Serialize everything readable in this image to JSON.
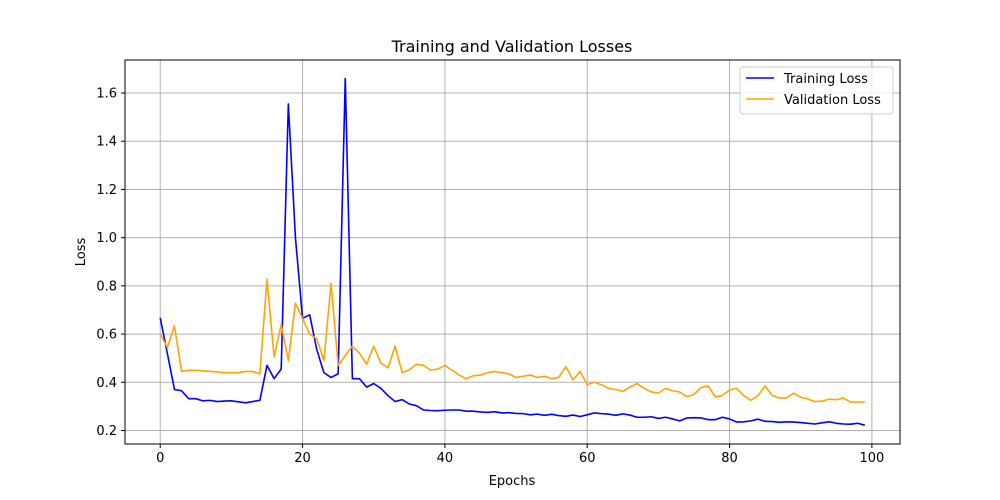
{
  "chart_data": {
    "type": "line",
    "title": "Training and Validation Losses",
    "xlabel": "Epochs",
    "ylabel": "Loss",
    "xlim": [
      -4.95,
      103.95
    ],
    "ylim": [
      0.144,
      1.737
    ],
    "xticks": [
      0,
      20,
      40,
      60,
      80,
      100
    ],
    "yticks": [
      0.2,
      0.4,
      0.6,
      0.8,
      1.0,
      1.2,
      1.4,
      1.6
    ],
    "xtick_labels": [
      "0",
      "20",
      "40",
      "60",
      "80",
      "100"
    ],
    "ytick_labels": [
      "0.2",
      "0.4",
      "0.6",
      "0.8",
      "1.0",
      "1.2",
      "1.4",
      "1.6"
    ],
    "grid": true,
    "legend_position": "top-right",
    "x": [
      0,
      1,
      2,
      3,
      4,
      5,
      6,
      7,
      8,
      9,
      10,
      11,
      12,
      13,
      14,
      15,
      16,
      17,
      18,
      19,
      20,
      21,
      22,
      23,
      24,
      25,
      26,
      27,
      28,
      29,
      30,
      31,
      32,
      33,
      34,
      35,
      36,
      37,
      38,
      39,
      40,
      41,
      42,
      43,
      44,
      45,
      46,
      47,
      48,
      49,
      50,
      51,
      52,
      53,
      54,
      55,
      56,
      57,
      58,
      59,
      60,
      61,
      62,
      63,
      64,
      65,
      66,
      67,
      68,
      69,
      70,
      71,
      72,
      73,
      74,
      75,
      76,
      77,
      78,
      79,
      80,
      81,
      82,
      83,
      84,
      85,
      86,
      87,
      88,
      89,
      90,
      91,
      92,
      93,
      94,
      95,
      96,
      97,
      98,
      99
    ],
    "series": [
      {
        "name": "Training Loss",
        "color": "#0000ff",
        "values": [
          0.667,
          0.52,
          0.37,
          0.365,
          0.332,
          0.332,
          0.323,
          0.325,
          0.32,
          0.322,
          0.323,
          0.319,
          0.315,
          0.32,
          0.325,
          0.47,
          0.415,
          0.455,
          1.555,
          1.0,
          0.665,
          0.68,
          0.535,
          0.44,
          0.42,
          0.435,
          1.66,
          0.415,
          0.415,
          0.38,
          0.395,
          0.375,
          0.345,
          0.32,
          0.328,
          0.31,
          0.303,
          0.285,
          0.283,
          0.282,
          0.284,
          0.285,
          0.285,
          0.28,
          0.28,
          0.277,
          0.275,
          0.278,
          0.273,
          0.274,
          0.271,
          0.27,
          0.265,
          0.268,
          0.263,
          0.267,
          0.262,
          0.259,
          0.264,
          0.258,
          0.265,
          0.273,
          0.27,
          0.268,
          0.263,
          0.269,
          0.264,
          0.255,
          0.255,
          0.257,
          0.25,
          0.255,
          0.248,
          0.24,
          0.252,
          0.253,
          0.252,
          0.245,
          0.245,
          0.255,
          0.248,
          0.235,
          0.236,
          0.24,
          0.247,
          0.238,
          0.237,
          0.234,
          0.236,
          0.235,
          0.233,
          0.23,
          0.227,
          0.232,
          0.236,
          0.23,
          0.227,
          0.226,
          0.23,
          0.222
        ]
      },
      {
        "name": "Validation Loss",
        "color": "#ffa500",
        "values": [
          0.6,
          0.545,
          0.634,
          0.445,
          0.45,
          0.45,
          0.447,
          0.445,
          0.443,
          0.44,
          0.44,
          0.44,
          0.445,
          0.445,
          0.435,
          0.828,
          0.505,
          0.64,
          0.49,
          0.728,
          0.665,
          0.6,
          0.58,
          0.49,
          0.81,
          0.47,
          0.51,
          0.55,
          0.52,
          0.475,
          0.55,
          0.48,
          0.46,
          0.55,
          0.44,
          0.452,
          0.475,
          0.47,
          0.45,
          0.455,
          0.47,
          0.45,
          0.43,
          0.415,
          0.427,
          0.43,
          0.44,
          0.445,
          0.44,
          0.435,
          0.42,
          0.425,
          0.43,
          0.42,
          0.425,
          0.415,
          0.42,
          0.465,
          0.41,
          0.445,
          0.39,
          0.4,
          0.39,
          0.375,
          0.37,
          0.362,
          0.38,
          0.395,
          0.375,
          0.36,
          0.355,
          0.375,
          0.365,
          0.36,
          0.34,
          0.35,
          0.378,
          0.385,
          0.34,
          0.345,
          0.368,
          0.375,
          0.345,
          0.325,
          0.345,
          0.385,
          0.345,
          0.335,
          0.335,
          0.355,
          0.338,
          0.33,
          0.32,
          0.322,
          0.33,
          0.328,
          0.335,
          0.318,
          0.318,
          0.318
        ]
      }
    ]
  }
}
